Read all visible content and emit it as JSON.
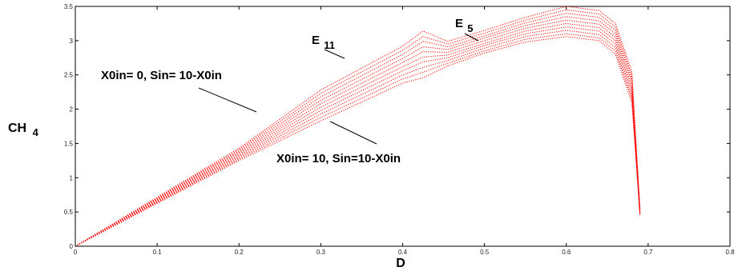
{
  "chart_data": {
    "type": "line",
    "xlabel": "D",
    "ylabel_main": "CH",
    "ylabel_sub": "4",
    "xlim": [
      0,
      0.8
    ],
    "ylim": [
      0,
      3.5
    ],
    "x_ticks": [
      "0",
      "0.1",
      "0.2",
      "0.3",
      "0.4",
      "0.5",
      "0.6",
      "0.7",
      "0.8"
    ],
    "y_ticks": [
      "0",
      "0.5",
      "1",
      "1.5",
      "2",
      "2.5",
      "3",
      "3.5"
    ],
    "grid": false,
    "line_color": "#ff0000",
    "line_style": "dotted",
    "series": [
      {
        "values": [
          [
            0,
            0
          ],
          [
            0.1,
            0.625
          ],
          [
            0.2,
            1.25
          ],
          [
            0.3,
            1.83
          ],
          [
            0.4,
            2.38
          ],
          [
            0.425,
            2.46
          ],
          [
            0.455,
            2.63
          ],
          [
            0.5,
            2.82
          ],
          [
            0.55,
            2.98
          ],
          [
            0.6,
            3.06
          ],
          [
            0.64,
            3.0
          ],
          [
            0.66,
            2.8
          ],
          [
            0.68,
            2.1
          ],
          [
            0.69,
            0.45
          ]
        ]
      },
      {
        "values": [
          [
            0,
            0
          ],
          [
            0.1,
            0.635
          ],
          [
            0.2,
            1.27
          ],
          [
            0.3,
            1.88
          ],
          [
            0.4,
            2.44
          ],
          [
            0.425,
            2.54
          ],
          [
            0.455,
            2.67
          ],
          [
            0.5,
            2.85
          ],
          [
            0.55,
            3.02
          ],
          [
            0.6,
            3.1
          ],
          [
            0.64,
            3.04
          ],
          [
            0.66,
            2.85
          ],
          [
            0.68,
            2.15
          ],
          [
            0.69,
            0.46
          ]
        ]
      },
      {
        "values": [
          [
            0,
            0
          ],
          [
            0.1,
            0.645
          ],
          [
            0.2,
            1.29
          ],
          [
            0.3,
            1.93
          ],
          [
            0.4,
            2.5
          ],
          [
            0.425,
            2.61
          ],
          [
            0.455,
            2.71
          ],
          [
            0.5,
            2.89
          ],
          [
            0.55,
            3.06
          ],
          [
            0.6,
            3.15
          ],
          [
            0.64,
            3.09
          ],
          [
            0.66,
            2.9
          ],
          [
            0.68,
            2.2
          ],
          [
            0.69,
            0.47
          ]
        ]
      },
      {
        "values": [
          [
            0,
            0
          ],
          [
            0.1,
            0.655
          ],
          [
            0.2,
            1.31
          ],
          [
            0.3,
            1.98
          ],
          [
            0.4,
            2.56
          ],
          [
            0.425,
            2.69
          ],
          [
            0.455,
            2.75
          ],
          [
            0.5,
            2.93
          ],
          [
            0.55,
            3.1
          ],
          [
            0.6,
            3.2
          ],
          [
            0.64,
            3.14
          ],
          [
            0.66,
            2.95
          ],
          [
            0.68,
            2.25
          ],
          [
            0.69,
            0.48
          ]
        ]
      },
      {
        "values": [
          [
            0,
            0
          ],
          [
            0.1,
            0.665
          ],
          [
            0.2,
            1.33
          ],
          [
            0.3,
            2.03
          ],
          [
            0.4,
            2.62
          ],
          [
            0.425,
            2.76
          ],
          [
            0.455,
            2.79
          ],
          [
            0.5,
            2.96
          ],
          [
            0.55,
            3.14
          ],
          [
            0.6,
            3.25
          ],
          [
            0.64,
            3.19
          ],
          [
            0.66,
            3.0
          ],
          [
            0.68,
            2.3
          ],
          [
            0.69,
            0.49
          ]
        ]
      },
      {
        "values": [
          [
            0,
            0
          ],
          [
            0.1,
            0.675
          ],
          [
            0.2,
            1.35
          ],
          [
            0.3,
            2.08
          ],
          [
            0.4,
            2.68
          ],
          [
            0.425,
            2.84
          ],
          [
            0.455,
            2.83
          ],
          [
            0.5,
            3.0
          ],
          [
            0.55,
            3.18
          ],
          [
            0.6,
            3.3
          ],
          [
            0.64,
            3.24
          ],
          [
            0.66,
            3.05
          ],
          [
            0.68,
            2.35
          ],
          [
            0.69,
            0.5
          ]
        ]
      },
      {
        "values": [
          [
            0,
            0
          ],
          [
            0.1,
            0.685
          ],
          [
            0.2,
            1.37
          ],
          [
            0.3,
            2.13
          ],
          [
            0.4,
            2.74
          ],
          [
            0.425,
            2.91
          ],
          [
            0.455,
            2.87
          ],
          [
            0.5,
            3.04
          ],
          [
            0.55,
            3.22
          ],
          [
            0.6,
            3.35
          ],
          [
            0.64,
            3.29
          ],
          [
            0.66,
            3.1
          ],
          [
            0.68,
            2.4
          ],
          [
            0.69,
            0.51
          ]
        ]
      },
      {
        "values": [
          [
            0,
            0
          ],
          [
            0.1,
            0.695
          ],
          [
            0.2,
            1.39
          ],
          [
            0.3,
            2.18
          ],
          [
            0.4,
            2.8
          ],
          [
            0.425,
            2.99
          ],
          [
            0.455,
            2.91
          ],
          [
            0.5,
            3.07
          ],
          [
            0.55,
            3.26
          ],
          [
            0.6,
            3.4
          ],
          [
            0.64,
            3.34
          ],
          [
            0.66,
            3.15
          ],
          [
            0.68,
            2.45
          ],
          [
            0.69,
            0.52
          ]
        ]
      },
      {
        "values": [
          [
            0,
            0
          ],
          [
            0.1,
            0.705
          ],
          [
            0.2,
            1.41
          ],
          [
            0.3,
            2.23
          ],
          [
            0.4,
            2.86
          ],
          [
            0.425,
            3.06
          ],
          [
            0.455,
            2.95
          ],
          [
            0.5,
            3.11
          ],
          [
            0.55,
            3.3
          ],
          [
            0.6,
            3.45
          ],
          [
            0.64,
            3.39
          ],
          [
            0.66,
            3.2
          ],
          [
            0.68,
            2.5
          ],
          [
            0.69,
            0.53
          ]
        ]
      },
      {
        "values": [
          [
            0,
            0
          ],
          [
            0.1,
            0.715
          ],
          [
            0.2,
            1.43
          ],
          [
            0.3,
            2.28
          ],
          [
            0.4,
            2.92
          ],
          [
            0.425,
            3.14
          ],
          [
            0.455,
            2.99
          ],
          [
            0.5,
            3.15
          ],
          [
            0.55,
            3.34
          ],
          [
            0.6,
            3.5
          ],
          [
            0.64,
            3.44
          ],
          [
            0.66,
            3.25
          ],
          [
            0.68,
            2.55
          ],
          [
            0.69,
            0.54
          ]
        ]
      }
    ],
    "annotations": {
      "e11_main": "E",
      "e11_sub": "11",
      "e5_main": "E",
      "e5_sub": "5",
      "top_label": "X0in= 0, Sin= 10-X0in",
      "bottom_label": "X0in= 10, Sin=10-X0in"
    }
  }
}
